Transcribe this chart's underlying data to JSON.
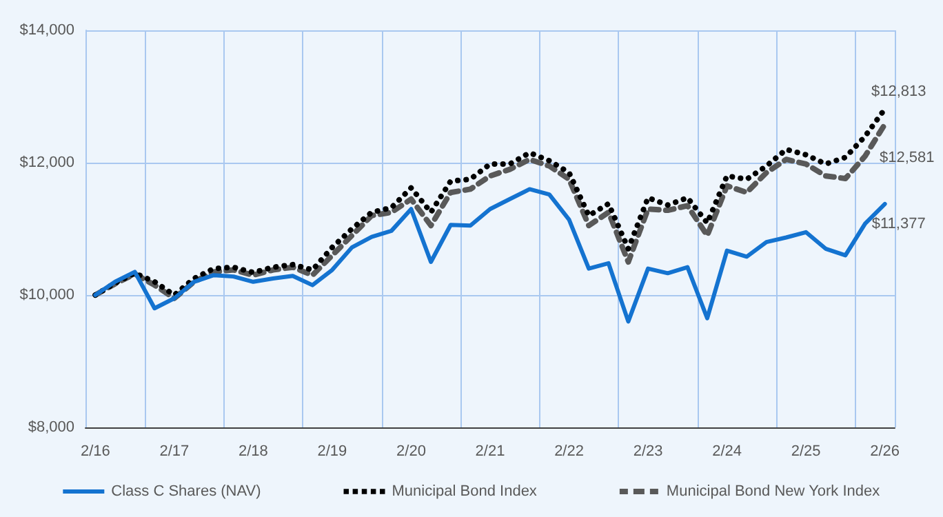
{
  "chart_data": {
    "type": "line",
    "categories": [
      "2/16",
      null,
      null,
      null,
      "2/17",
      null,
      null,
      null,
      "2/18",
      null,
      null,
      null,
      "2/19",
      null,
      null,
      null,
      "2/20",
      null,
      null,
      null,
      "2/21",
      null,
      null,
      null,
      "2/22",
      null,
      null,
      null,
      "2/23",
      null,
      null,
      null,
      "2/24",
      null,
      null,
      null,
      "2/25",
      null,
      null,
      null,
      "2/26"
    ],
    "series": [
      {
        "name": "Class C Shares (NAV)",
        "color": "#1473d0",
        "line_style": "solid",
        "values": [
          10000,
          10200,
          10350,
          9800,
          9950,
          10200,
          10300,
          10280,
          10200,
          10250,
          10290,
          10150,
          10380,
          10720,
          10880,
          10970,
          11300,
          10500,
          11060,
          11050,
          11300,
          11450,
          11600,
          11520,
          11140,
          10400,
          10480,
          9600,
          10400,
          10330,
          10420,
          9650,
          10670,
          10580,
          10800,
          10870,
          10950,
          10700,
          10600,
          11080,
          11377
        ],
        "value_labels": [
          null,
          null,
          null,
          null,
          null,
          null,
          null,
          null,
          null,
          null,
          null,
          null,
          null,
          null,
          null,
          null,
          null,
          null,
          null,
          null,
          null,
          null,
          null,
          null,
          null,
          null,
          null,
          null,
          null,
          null,
          null,
          null,
          null,
          null,
          null,
          null,
          null,
          null,
          null,
          null,
          "$11,377"
        ]
      },
      {
        "name": "Municipal Bond Index",
        "color": "#000000",
        "line_style": "dotted",
        "values": [
          10000,
          10180,
          10330,
          10200,
          10000,
          10250,
          10400,
          10420,
          10340,
          10420,
          10460,
          10380,
          10720,
          11000,
          11250,
          11320,
          11620,
          11250,
          11720,
          11750,
          11980,
          11980,
          12150,
          12030,
          11850,
          11200,
          11380,
          10700,
          11470,
          11360,
          11470,
          11090,
          11800,
          11750,
          11950,
          12200,
          12120,
          11980,
          12080,
          12400,
          12813
        ],
        "value_labels": [
          null,
          null,
          null,
          null,
          null,
          null,
          null,
          null,
          null,
          null,
          null,
          null,
          null,
          null,
          null,
          null,
          null,
          null,
          null,
          null,
          null,
          null,
          null,
          null,
          null,
          null,
          null,
          null,
          null,
          null,
          null,
          null,
          null,
          null,
          null,
          null,
          null,
          null,
          null,
          null,
          "$12,813"
        ]
      },
      {
        "name": "Municipal Bond New York Index",
        "color": "#595959",
        "line_style": "dashed",
        "values": [
          10000,
          10170,
          10320,
          10150,
          9950,
          10200,
          10350,
          10380,
          10300,
          10380,
          10420,
          10300,
          10600,
          10900,
          11200,
          11250,
          11450,
          11050,
          11550,
          11600,
          11800,
          11900,
          12050,
          11950,
          11750,
          11050,
          11250,
          10500,
          11300,
          11280,
          11350,
          10900,
          11650,
          11550,
          11850,
          12050,
          11980,
          11800,
          11760,
          12100,
          12581
        ],
        "value_labels": [
          null,
          null,
          null,
          null,
          null,
          null,
          null,
          null,
          null,
          null,
          null,
          null,
          null,
          null,
          null,
          null,
          null,
          null,
          null,
          null,
          null,
          null,
          null,
          null,
          null,
          null,
          null,
          null,
          null,
          null,
          null,
          null,
          null,
          null,
          null,
          null,
          null,
          null,
          null,
          null,
          "$12,581"
        ]
      }
    ],
    "ylim": [
      8000,
      14000
    ],
    "yticks": [
      {
        "value": 8000,
        "label": "$8,000"
      },
      {
        "value": 10000,
        "label": "$10,000"
      },
      {
        "value": 12000,
        "label": "$12,000"
      },
      {
        "value": 14000,
        "label": "$14,000"
      }
    ],
    "grid": true,
    "legend": "bottom",
    "marker": "none"
  }
}
